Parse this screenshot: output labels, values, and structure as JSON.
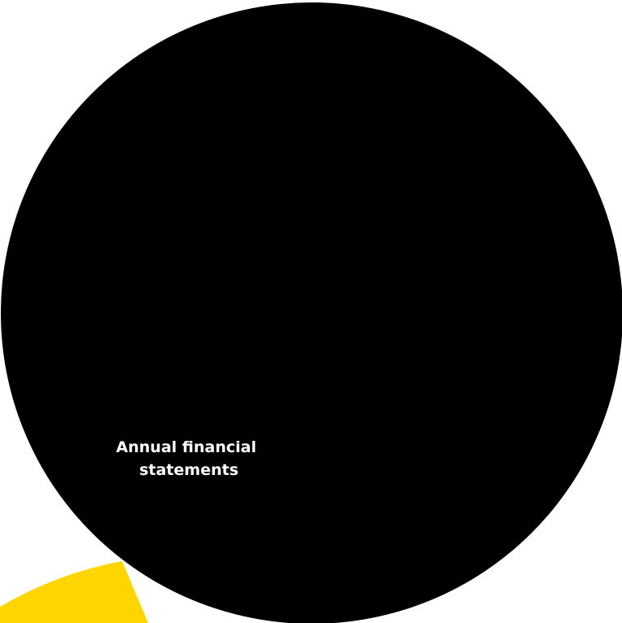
{
  "segment": {
    "label_line_1": "Annual financial",
    "label_line_2": "statements"
  },
  "colors": {
    "background": "#ffffff",
    "dark_segment": "#000000",
    "highlight_segment": "#ffd500",
    "label_text": "#ffffff"
  }
}
